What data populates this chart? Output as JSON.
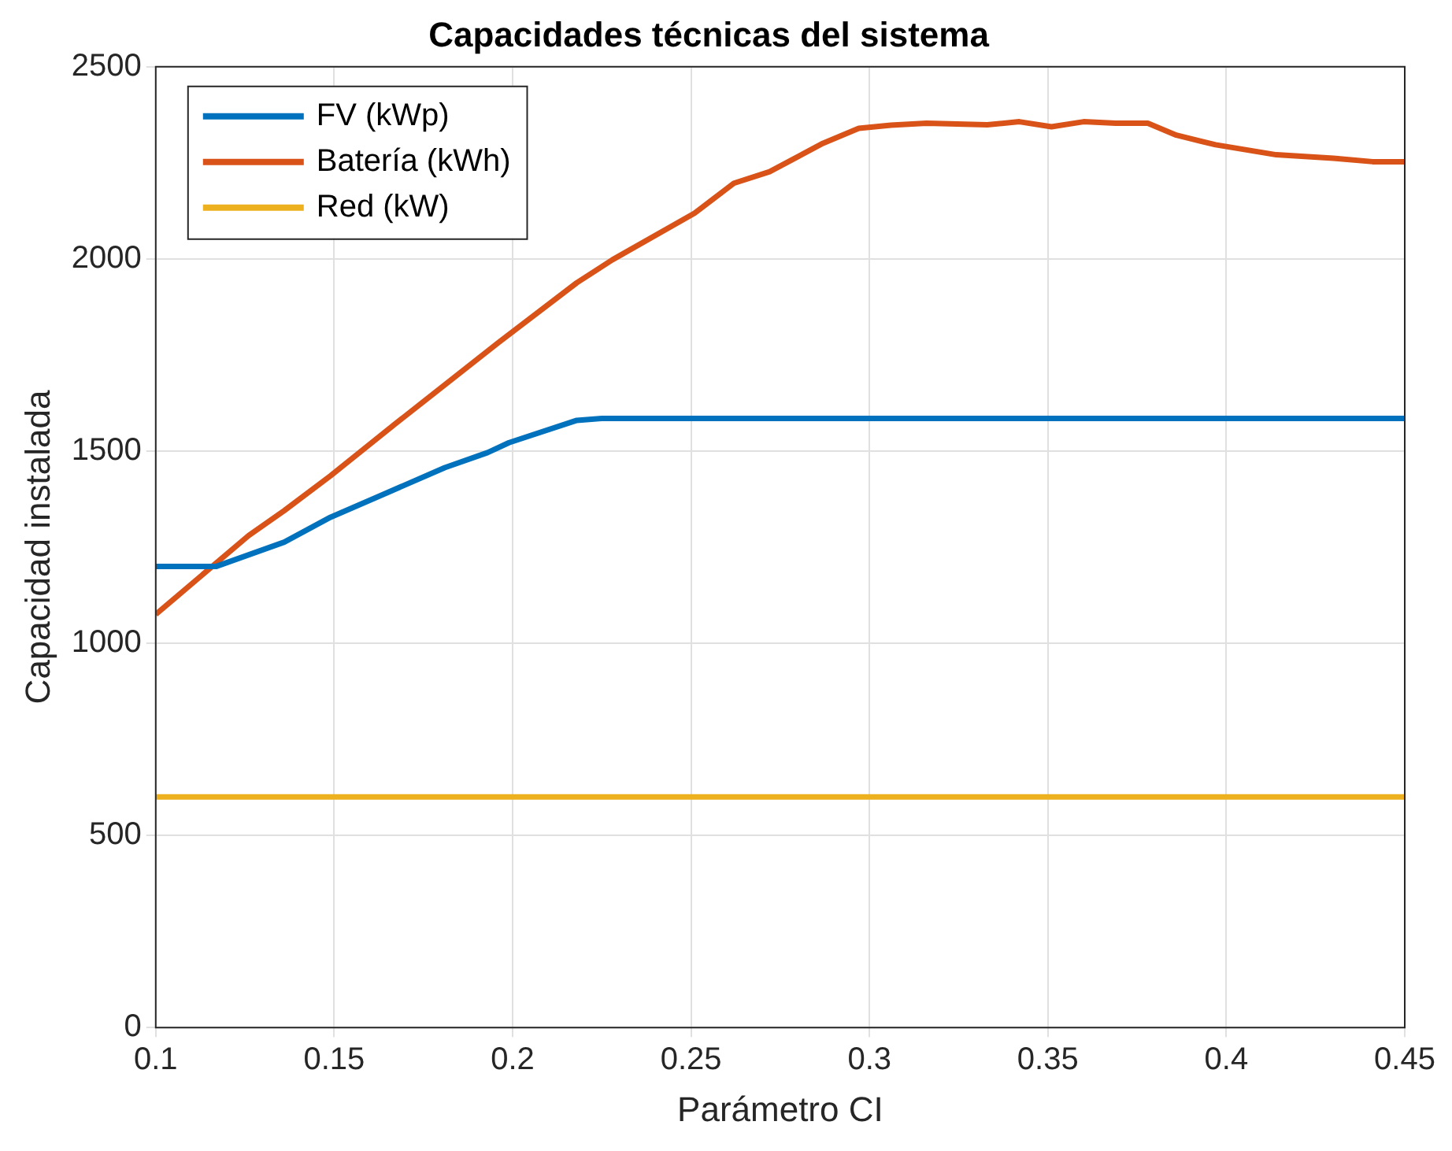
{
  "chart_data": {
    "type": "line",
    "title": "Capacidades técnicas del sistema",
    "xlabel": "Parámetro CI",
    "ylabel": "Capacidad instalada",
    "xlim": [
      0.1,
      0.45
    ],
    "xticks": [
      0.1,
      0.15,
      0.2,
      0.25,
      0.3,
      0.35,
      0.4,
      0.45
    ],
    "ylim": [
      0,
      2500
    ],
    "yticks": [
      0,
      500,
      1000,
      1500,
      2000,
      2500
    ],
    "grid": true,
    "legend": "top left",
    "marker": "none",
    "line_style": "solid",
    "series": [
      {
        "name": "FV (kWp)",
        "color": "#0072bd",
        "x": [
          0.1,
          0.117,
          0.136,
          0.149,
          0.163,
          0.181,
          0.193,
          0.199,
          0.218,
          0.225,
          0.45
        ],
        "values": [
          1200,
          1200,
          1263,
          1328,
          1384,
          1457,
          1496,
          1522,
          1580,
          1585,
          1585
        ]
      },
      {
        "name": "Batería (kWh)",
        "color": "#d95319",
        "x": [
          0.1,
          0.126,
          0.136,
          0.149,
          0.167,
          0.196,
          0.218,
          0.228,
          0.251,
          0.262,
          0.272,
          0.287,
          0.297,
          0.306,
          0.316,
          0.333,
          0.342,
          0.351,
          0.36,
          0.369,
          0.378,
          0.386,
          0.397,
          0.414,
          0.43,
          0.441,
          0.45
        ],
        "values": [
          1075,
          1280,
          1345,
          1436,
          1570,
          1782,
          1938,
          1998,
          2119,
          2197,
          2227,
          2301,
          2340,
          2348,
          2353,
          2349,
          2357,
          2344,
          2357,
          2353,
          2353,
          2322,
          2297,
          2271,
          2262,
          2253,
          2253
        ]
      },
      {
        "name": "Red (kW)",
        "color": "#edb120",
        "x": [
          0.1,
          0.45
        ],
        "values": [
          600,
          600
        ]
      }
    ]
  }
}
